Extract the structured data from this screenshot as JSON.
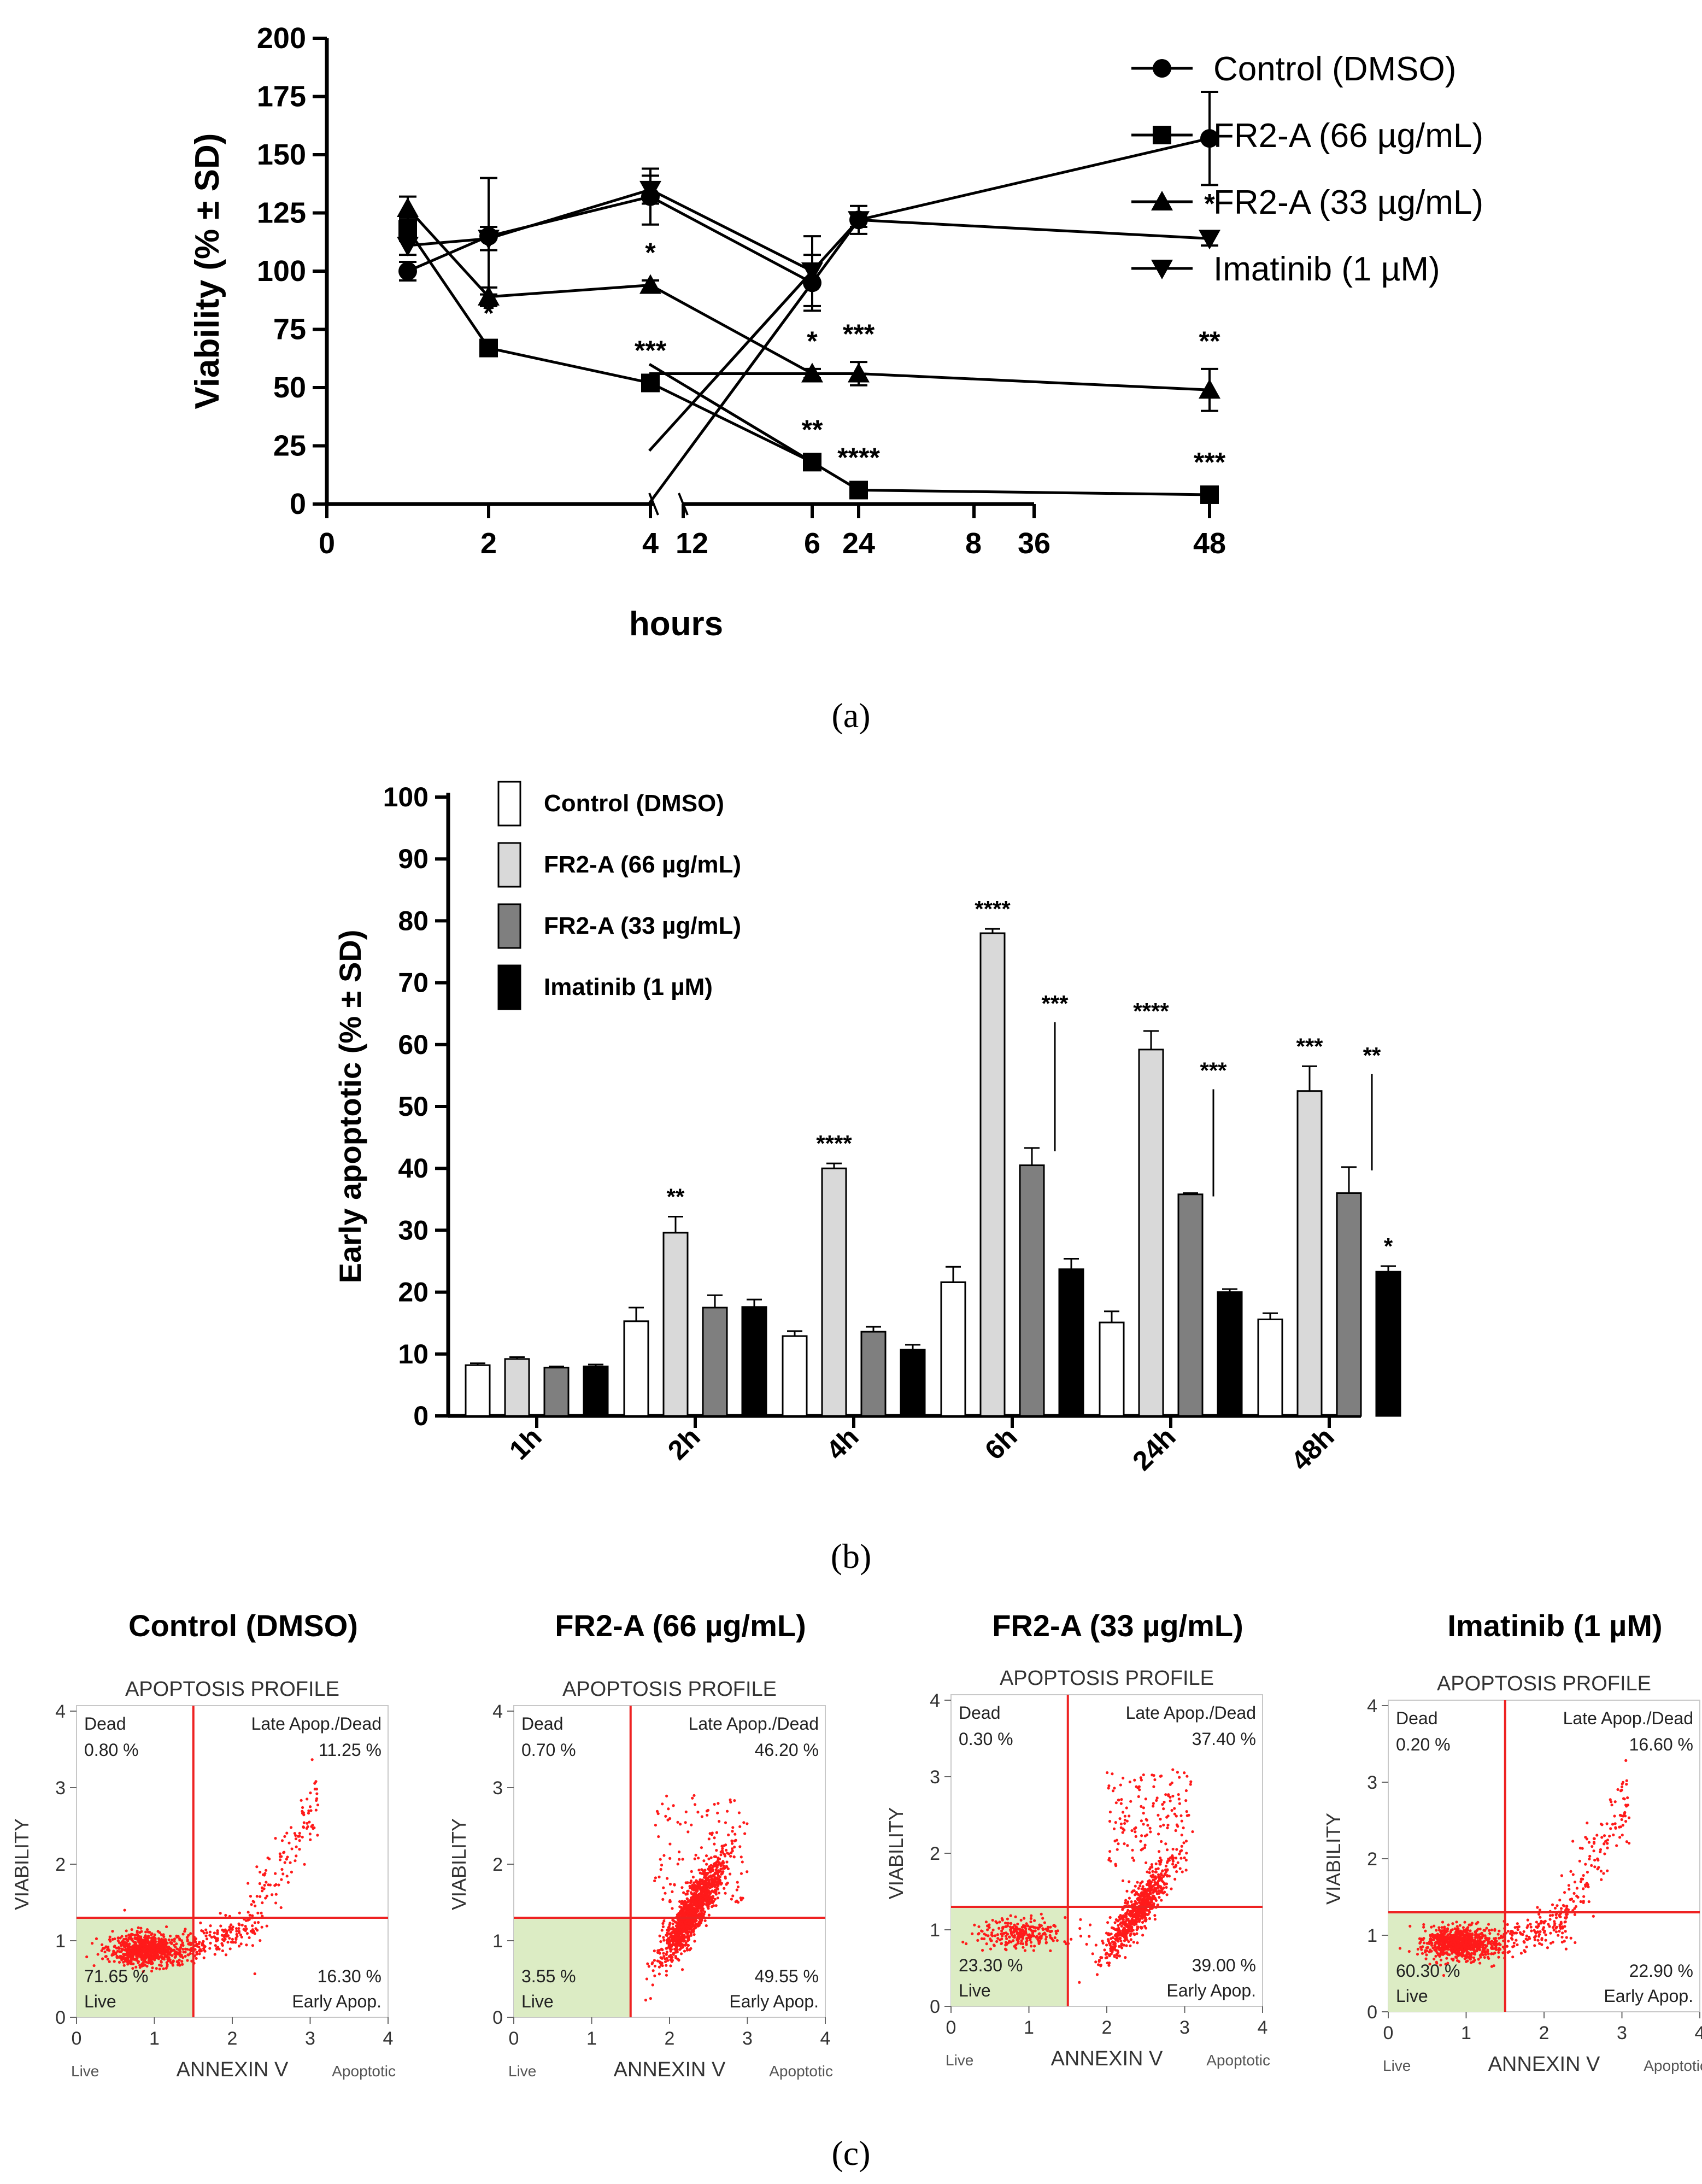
{
  "panel_labels": [
    "(a)",
    "(b)",
    "(c)"
  ],
  "chart_data": [
    {
      "type": "line",
      "panel": "(a)",
      "xlabel": "hours",
      "ylabel": "Viability (% ± SD)",
      "ylim": [
        0,
        200
      ],
      "yticks": [
        0,
        25,
        50,
        75,
        100,
        125,
        150,
        175,
        200
      ],
      "axis_break": [
        8,
        12
      ],
      "xticks": [
        0,
        2,
        4,
        6,
        8,
        12,
        24,
        36,
        48
      ],
      "xtick_labels": [
        "0",
        "2",
        "4",
        "6",
        "8",
        "12",
        "24",
        "36",
        "48"
      ],
      "legend_position": "right",
      "series": [
        {
          "name": "Control (DMSO)",
          "marker": "circle",
          "points": [
            {
              "x": 1,
              "y": 100,
              "sd": 4
            },
            {
              "x": 2,
              "y": 115,
              "sd": 25
            },
            {
              "x": 4,
              "y": 132,
              "sd": 12
            },
            {
              "x": 6,
              "y": 95,
              "sd": 12
            },
            {
              "x": 24,
              "y": 122,
              "sd": 6
            },
            {
              "x": 48,
              "y": 157,
              "sd": 20
            }
          ],
          "labels": []
        },
        {
          "name": "FR2-A  (66 µg/mL)",
          "marker": "square",
          "points": [
            {
              "x": 1,
              "y": 118,
              "sd": 5
            },
            {
              "x": 2,
              "y": 67,
              "sd": 3
            },
            {
              "x": 4,
              "y": 52,
              "sd": 2
            },
            {
              "x": 6,
              "y": 18,
              "sd": 2
            },
            {
              "x": 24,
              "y": 6,
              "sd": 2
            },
            {
              "x": 48,
              "y": 4,
              "sd": 2
            }
          ],
          "labels": [
            {
              "x": 2,
              "text": "*"
            },
            {
              "x": 4,
              "text": "***"
            },
            {
              "x": 6,
              "text": "**"
            },
            {
              "x": 24,
              "text": "****"
            },
            {
              "x": 48,
              "text": "***"
            }
          ]
        },
        {
          "name": "FR2-A  (33 µg/mL)",
          "marker": "triangle-up",
          "points": [
            {
              "x": 1,
              "y": 127,
              "sd": 5
            },
            {
              "x": 2,
              "y": 89,
              "sd": 4
            },
            {
              "x": 4,
              "y": 94,
              "sd": 2
            },
            {
              "x": 6,
              "y": 56,
              "sd": 2
            },
            {
              "x": 24,
              "y": 56,
              "sd": 5
            },
            {
              "x": 48,
              "y": 49,
              "sd": 9
            }
          ],
          "labels": [
            {
              "x": 4,
              "text": "*"
            },
            {
              "x": 6,
              "text": "*"
            },
            {
              "x": 24,
              "text": "***"
            },
            {
              "x": 48,
              "text": "**"
            }
          ]
        },
        {
          "name": "Imatinib (1 µM)",
          "marker": "triangle-down",
          "points": [
            {
              "x": 1,
              "y": 111,
              "sd": 4
            },
            {
              "x": 2,
              "y": 114,
              "sd": 5
            },
            {
              "x": 4,
              "y": 135,
              "sd": 6
            },
            {
              "x": 6,
              "y": 100,
              "sd": 15
            },
            {
              "x": 24,
              "y": 122,
              "sd": 3
            },
            {
              "x": 48,
              "y": 114,
              "sd": 3
            }
          ],
          "labels": [
            {
              "x": 48,
              "text": "*"
            }
          ]
        }
      ]
    },
    {
      "type": "bar",
      "panel": "(b)",
      "ylabel": "Early apoptotic (% ± SD)",
      "ylim": [
        0,
        100
      ],
      "yticks": [
        0,
        10,
        20,
        30,
        40,
        50,
        60,
        70,
        80,
        90,
        100
      ],
      "categories": [
        "1h",
        "2h",
        "4h",
        "6h",
        "24h",
        "48h"
      ],
      "legend_position": "top-left",
      "series": [
        {
          "name": "Control (DMSO)",
          "color": "#ffffff",
          "values": [
            8.2,
            15.3,
            12.9,
            21.6,
            15.1,
            15.6
          ],
          "sd": [
            0.3,
            2.2,
            0.8,
            2.5,
            1.8,
            1.0
          ],
          "labels": [
            "",
            "",
            "",
            "",
            "",
            ""
          ]
        },
        {
          "name": "FR2-A (66 µg/mL)",
          "color": "#d9d9d9",
          "values": [
            9.2,
            29.6,
            40.0,
            78.0,
            59.2,
            52.5
          ],
          "sd": [
            0.3,
            2.6,
            0.8,
            0.7,
            3.0,
            4.0
          ],
          "labels": [
            "",
            "**",
            "****",
            "****",
            "****",
            "***"
          ]
        },
        {
          "name": "FR2-A (33 µg/mL)",
          "color": "#7f7f7f",
          "values": [
            7.8,
            17.5,
            13.6,
            40.5,
            35.8,
            36.0
          ],
          "sd": [
            0.2,
            2.0,
            0.8,
            2.8,
            0.2,
            4.2
          ],
          "labels": [
            "",
            "",
            "",
            "***",
            "***",
            "**"
          ]
        },
        {
          "name": "Imatinib (1 µM)",
          "color": "#000000",
          "values": [
            8.0,
            17.6,
            10.7,
            23.7,
            20.0,
            23.3
          ],
          "sd": [
            0.3,
            1.2,
            0.8,
            1.7,
            0.5,
            0.9
          ],
          "labels": [
            "",
            "",
            "",
            "",
            "",
            "*"
          ]
        }
      ]
    }
  ],
  "flow_panels": {
    "plot_title": "APOPTOSIS PROFILE",
    "xlabel": "ANNEXIN V",
    "ylabel": "VIABILITY",
    "xlim": [
      0,
      4
    ],
    "ylim": [
      0,
      4
    ],
    "ticks": [
      "0",
      "1",
      "2",
      "3",
      "4"
    ],
    "gate_x": 1.5,
    "gate_y": 1.3,
    "axis_live": "Live",
    "axis_apoptotic": "Apoptotic",
    "quadrant_names": {
      "dead": "Dead",
      "late": "Late Apop./Dead",
      "live": "Live",
      "early": "Early Apop."
    },
    "panels": [
      {
        "title": "Control (DMSO)",
        "dead": "0.80 %",
        "late": "11.25 %",
        "live": "71.65 %",
        "early": "16.30 %",
        "cluster": {
          "cx": 0.9,
          "cy": 0.88
        },
        "spread": "tail"
      },
      {
        "title": "FR2-A (66 µg/mL)",
        "dead": "0.70 %",
        "late": "46.20 %",
        "live": "3.55 %",
        "early": "49.55 %",
        "cluster": {
          "cx": 2.3,
          "cy": 1.4
        },
        "spread": "dense"
      },
      {
        "title": "FR2-A (33 µg/mL)",
        "dead": "0.30 %",
        "late": "37.40 %",
        "live": "23.30 %",
        "early": "39.00 %",
        "cluster": {
          "cx": 2.4,
          "cy": 1.25
        },
        "spread": "mixed"
      },
      {
        "title": "Imatinib (1 µM)",
        "dead": "0.20 %",
        "late": "16.60 %",
        "live": "60.30 %",
        "early": "22.90 %",
        "cluster": {
          "cx": 0.9,
          "cy": 0.9
        },
        "spread": "tail"
      }
    ]
  }
}
